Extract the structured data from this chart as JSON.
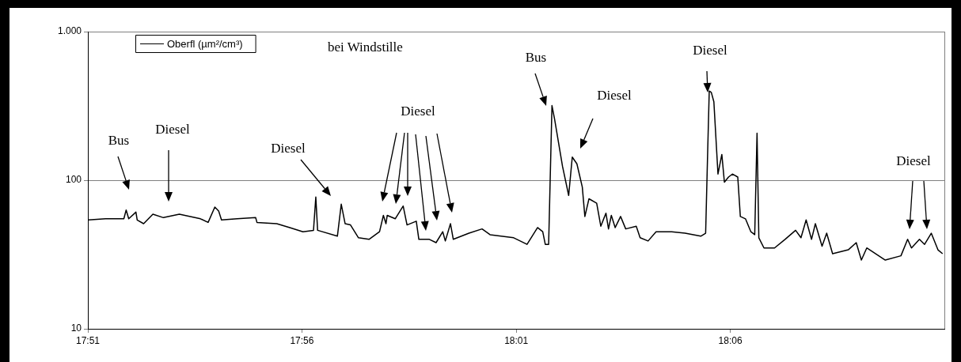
{
  "chart_data": {
    "type": "line",
    "log": "y",
    "grid": "y",
    "legend": "top left",
    "xlim": [
      17.85,
      18.1833
    ],
    "ylim": [
      10,
      1000
    ],
    "xticks": [
      {
        "value": 17.85,
        "label": "17:51"
      },
      {
        "value": 17.9333,
        "label": "17:56"
      },
      {
        "value": 18.0167,
        "label": "18:01"
      },
      {
        "value": 18.1,
        "label": "18:06"
      }
    ],
    "yticks": [
      10,
      100,
      {
        "value": 1000,
        "label": "1.000"
      }
    ],
    "annotations": [
      "bei Windstille",
      "Bus",
      "Diesel",
      "Diesel",
      "Diesel",
      "Bus",
      "Diesel",
      "Diesel",
      "Diesel"
    ],
    "x": [
      17.8502,
      17.8569,
      17.864,
      17.8649,
      17.8659,
      17.8687,
      17.8692,
      17.8717,
      17.8753,
      17.8794,
      17.8856,
      17.8938,
      17.8968,
      17.8994,
      17.9009,
      17.902,
      17.9081,
      17.9153,
      17.9158,
      17.9235,
      17.9286,
      17.9337,
      17.9378,
      17.9387,
      17.9394,
      17.9471,
      17.9486,
      17.9501,
      17.9522,
      17.9553,
      17.9594,
      17.9635,
      17.965,
      17.966,
      17.9665,
      17.9696,
      17.9727,
      17.9742,
      17.9778,
      17.9788,
      17.9829,
      17.9855,
      17.9881,
      17.9891,
      17.9911,
      17.9922,
      17.9983,
      18.0034,
      18.0065,
      18.0157,
      18.0209,
      18.025,
      18.027,
      18.028,
      18.0293,
      18.0306,
      18.0316,
      18.0347,
      18.0371,
      18.0385,
      18.0403,
      18.0424,
      18.0434,
      18.045,
      18.048,
      18.0496,
      18.0516,
      18.0526,
      18.0537,
      18.0552,
      18.0573,
      18.0593,
      18.0634,
      18.0649,
      18.068,
      18.0711,
      18.0772,
      18.0824,
      18.0885,
      18.0904,
      18.0911,
      18.0918,
      18.0926,
      18.0936,
      18.0952,
      18.0967,
      18.0977,
      18.0993,
      18.1008,
      18.1029,
      18.1039,
      18.1059,
      18.108,
      18.1095,
      18.1104,
      18.1111,
      18.1131,
      18.1172,
      18.1213,
      18.1254,
      18.1275,
      18.1295,
      18.1316,
      18.1331,
      18.1357,
      18.1375,
      18.1398,
      18.1459,
      18.149,
      18.151,
      18.1531,
      18.1603,
      18.1664,
      18.169,
      18.1705,
      18.1736,
      18.1756,
      18.1782,
      18.1808,
      18.1826
    ],
    "series": [
      {
        "name": "Oberfl (µm²/cm³)",
        "color": "#000000",
        "values": [
          54,
          55,
          55,
          63,
          55,
          61,
          54,
          51,
          59,
          56,
          59,
          55,
          52,
          66,
          62,
          54,
          55,
          56,
          52,
          51,
          48,
          45,
          46,
          77,
          46,
          42,
          69,
          51,
          50,
          41,
          40,
          45,
          58,
          51,
          58,
          55,
          67,
          50,
          53,
          40,
          40,
          38,
          45,
          39,
          51,
          40,
          44,
          47,
          43,
          41,
          37,
          48,
          45,
          37,
          37,
          318,
          259,
          124,
          79,
          143,
          129,
          90,
          57,
          75,
          70,
          49,
          60,
          47,
          58,
          48,
          57,
          47,
          49,
          41,
          39,
          45,
          45,
          44,
          42,
          44,
          135,
          398,
          390,
          337,
          110,
          149,
          97,
          105,
          110,
          105,
          57,
          55,
          45,
          43,
          207,
          41,
          35,
          35,
          40,
          46,
          41,
          54,
          40,
          51,
          36,
          44,
          32,
          34,
          38,
          29,
          35,
          29,
          31,
          40,
          35,
          40,
          37,
          44,
          34,
          32
        ]
      }
    ]
  }
}
